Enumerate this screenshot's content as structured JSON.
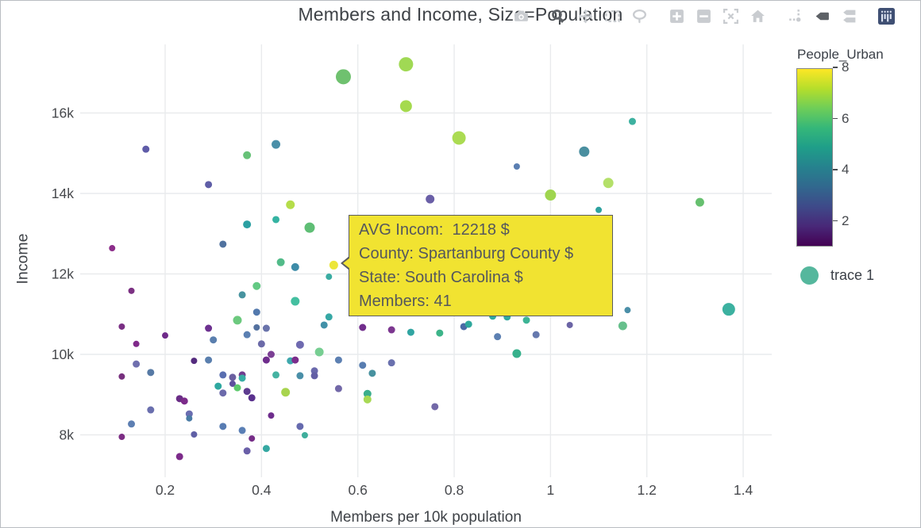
{
  "title": "Members and Income, Size=Population",
  "modebar": {
    "groups": [
      [
        "camera"
      ],
      [
        "zoom",
        "pan",
        "box-select",
        "lasso"
      ],
      [
        "zoom-in",
        "zoom-out",
        "autoscale",
        "reset-home"
      ],
      [
        "spike-lines",
        "hover-closest",
        "hover-compare"
      ],
      [
        "plotly-logo"
      ]
    ],
    "active": [
      "zoom",
      "hover-closest"
    ],
    "color_idle": "#c9ccd0",
    "color_active": "#5d6166",
    "logo_bg": "#3f4f73"
  },
  "tooltip": {
    "lines": [
      "AVG Incom:  12218 $",
      "County: Spartanburg County $",
      "State: South Carolina $",
      "Members: 41"
    ],
    "bg": "#f1e331",
    "border": "#5b5c5e",
    "text_color": "#54575d"
  },
  "chart_data": {
    "type": "scatter",
    "title": "Members and Income, Size=Population",
    "xlabel": "Members per 10k population",
    "ylabel": "Income",
    "xlim": [
      0.03,
      1.46
    ],
    "ylim": [
      7050,
      17700
    ],
    "grid": true,
    "x_ticks": {
      "values": [
        0.2,
        0.4,
        0.6,
        0.8,
        1,
        1.2,
        1.4
      ],
      "labels": [
        "0.2",
        "0.4",
        "0.6",
        "0.8",
        "1",
        "1.2",
        "1.4"
      ]
    },
    "y_ticks": {
      "values": [
        8000,
        10000,
        12000,
        14000,
        16000
      ],
      "labels": [
        "8k",
        "10k",
        "12k",
        "14k",
        "16k"
      ]
    },
    "size_encodes": "Population",
    "legend": [
      {
        "name": "trace 1",
        "color": "#55b79d"
      }
    ],
    "colorbar": {
      "title": "People_Urban",
      "tick_values": [
        8,
        6,
        4,
        2
      ],
      "tick_labels": [
        "8",
        "6",
        "4",
        "2"
      ],
      "vmin": 1,
      "vmax": 8,
      "colorscale": "viridis",
      "gradient_top_to_bottom": [
        "#fde725",
        "#b5de2b",
        "#6ece58",
        "#35b779",
        "#1f9e89",
        "#26828e",
        "#31688e",
        "#3e4a89",
        "#482878",
        "#440154"
      ]
    },
    "hovered": {
      "x": 0.55,
      "income": 12218,
      "county": "Spartanburg County",
      "state": "South Carolina",
      "members": 41,
      "color": "#ece63a"
    },
    "hovered_index": 19,
    "points_format": [
      "members_per_10k",
      "income",
      "radius_px",
      "color"
    ],
    "points": [
      [
        0.16,
        15100,
        4.5,
        "#5f5ca8"
      ],
      [
        0.37,
        14950,
        5,
        "#67c278"
      ],
      [
        0.29,
        14220,
        4.5,
        "#5f5ea7"
      ],
      [
        0.43,
        15220,
        5.5,
        "#4a8fa8"
      ],
      [
        0.46,
        13720,
        5.5,
        "#b5dd4a"
      ],
      [
        0.43,
        13350,
        4.5,
        "#35b3a2"
      ],
      [
        0.5,
        13150,
        6.5,
        "#5fbe75"
      ],
      [
        0.37,
        13230,
        5,
        "#2ba0a2"
      ],
      [
        0.32,
        12740,
        4.5,
        "#50729f"
      ],
      [
        0.09,
        12640,
        4,
        "#8c2d8a"
      ],
      [
        0.44,
        12290,
        5,
        "#52bb89"
      ],
      [
        0.47,
        12170,
        5,
        "#3e8ca8"
      ],
      [
        0.57,
        16900,
        9.5,
        "#6fc16f"
      ],
      [
        0.7,
        17210,
        9,
        "#a0d954"
      ],
      [
        0.7,
        16170,
        7.5,
        "#a5da4e"
      ],
      [
        0.81,
        15380,
        8.5,
        "#abdb52"
      ],
      [
        0.93,
        14670,
        4,
        "#5b7fb2"
      ],
      [
        0.75,
        13860,
        5.5,
        "#6a5fa7"
      ],
      [
        1.0,
        13960,
        7,
        "#9fd54f"
      ],
      [
        0.55,
        12218,
        5.5,
        "#ece63a"
      ],
      [
        1.17,
        15790,
        4.5,
        "#3db1a0"
      ],
      [
        1.07,
        15040,
        6.5,
        "#4a8fa0"
      ],
      [
        1.12,
        14260,
        6.5,
        "#b4e069"
      ],
      [
        1.31,
        13780,
        5.5,
        "#66c06f"
      ],
      [
        1.1,
        13590,
        4,
        "#2ea2a0"
      ],
      [
        0.13,
        11580,
        4,
        "#7c3183"
      ],
      [
        0.11,
        10690,
        4,
        "#7a2f84"
      ],
      [
        0.2,
        10470,
        4,
        "#6f2b8a"
      ],
      [
        0.14,
        10260,
        4,
        "#802a8a"
      ],
      [
        0.29,
        10650,
        4.5,
        "#6d3190"
      ],
      [
        0.3,
        10360,
        4.5,
        "#5a7fae"
      ],
      [
        0.36,
        11480,
        4.5,
        "#47939f"
      ],
      [
        0.39,
        11700,
        5,
        "#63c983"
      ],
      [
        0.39,
        11050,
        4.5,
        "#5379ad"
      ],
      [
        0.35,
        10850,
        5.5,
        "#6cc97e"
      ],
      [
        0.37,
        10490,
        4.5,
        "#5b80b2"
      ],
      [
        0.39,
        10670,
        4,
        "#54719f"
      ],
      [
        0.41,
        10650,
        4.5,
        "#6a74ab"
      ],
      [
        0.47,
        11320,
        5.5,
        "#44bfa0"
      ],
      [
        0.4,
        10260,
        4.5,
        "#6b6aa8"
      ],
      [
        0.48,
        10240,
        5,
        "#6f6ab0"
      ],
      [
        0.42,
        10000,
        4.5,
        "#7b3f94"
      ],
      [
        0.41,
        9860,
        4.5,
        "#6e2d8c"
      ],
      [
        0.46,
        9840,
        4.5,
        "#3fa8ad"
      ],
      [
        0.47,
        9860,
        4.5,
        "#7b2d8c"
      ],
      [
        0.26,
        9840,
        4,
        "#542b7e"
      ],
      [
        0.29,
        9860,
        4.5,
        "#5a7fae"
      ],
      [
        0.14,
        9760,
        4.5,
        "#6f6fae"
      ],
      [
        0.17,
        9550,
        4.5,
        "#577aa5"
      ],
      [
        0.11,
        9450,
        4,
        "#77307e"
      ],
      [
        0.32,
        9490,
        4.5,
        "#5a6fb0"
      ],
      [
        0.34,
        9430,
        4.5,
        "#6b5fa0"
      ],
      [
        0.36,
        9490,
        4.5,
        "#713d8f"
      ],
      [
        0.36,
        9410,
        4.5,
        "#38ada4"
      ],
      [
        0.31,
        9210,
        4.5,
        "#2fa8a0"
      ],
      [
        0.34,
        9270,
        4,
        "#5e4f9e"
      ],
      [
        0.35,
        9170,
        4.5,
        "#5cc96c"
      ],
      [
        0.32,
        9040,
        4.5,
        "#6c6aab"
      ],
      [
        0.37,
        9080,
        4.5,
        "#5e3c90"
      ],
      [
        0.38,
        8920,
        4.5,
        "#59308d"
      ],
      [
        0.23,
        8900,
        4.5,
        "#6a2d86"
      ],
      [
        0.24,
        8840,
        4.5,
        "#7c2b8a"
      ],
      [
        0.17,
        8620,
        4.5,
        "#6a6fae"
      ],
      [
        0.25,
        8520,
        4.5,
        "#6a6db0"
      ],
      [
        0.25,
        8410,
        4,
        "#4a7ba5"
      ],
      [
        0.13,
        8270,
        4.5,
        "#5d7fb2"
      ],
      [
        0.32,
        8210,
        4.5,
        "#587cb2"
      ],
      [
        0.36,
        8110,
        4.5,
        "#5a7fb5"
      ],
      [
        0.11,
        7950,
        4,
        "#7c2d84"
      ],
      [
        0.38,
        7910,
        4,
        "#762d87"
      ],
      [
        0.26,
        8010,
        4,
        "#5f5fa5"
      ],
      [
        0.37,
        7600,
        4.5,
        "#6a5fa8"
      ],
      [
        0.41,
        7660,
        4.5,
        "#35a8a2"
      ],
      [
        0.23,
        7460,
        4.5,
        "#7c2b8a"
      ],
      [
        0.42,
        8480,
        4,
        "#6e2d8c"
      ],
      [
        0.48,
        8210,
        4.5,
        "#666aae"
      ],
      [
        0.49,
        7990,
        4,
        "#3fae9c"
      ],
      [
        0.45,
        9060,
        5.5,
        "#a8d44e"
      ],
      [
        0.52,
        10060,
        5.5,
        "#77ce92"
      ],
      [
        0.51,
        9590,
        4.5,
        "#6a69ac"
      ],
      [
        0.51,
        9470,
        4.5,
        "#635fa5"
      ],
      [
        0.48,
        9470,
        4.5,
        "#4a8fa8"
      ],
      [
        0.43,
        9490,
        4.5,
        "#45b3a2"
      ],
      [
        0.54,
        11930,
        4,
        "#3aaca2"
      ],
      [
        0.54,
        10930,
        4.5,
        "#36a8a5"
      ],
      [
        0.53,
        10730,
        4.5,
        "#4191a8"
      ],
      [
        0.61,
        10670,
        4.5,
        "#712d8c"
      ],
      [
        0.67,
        10610,
        4.5,
        "#7c3790"
      ],
      [
        0.71,
        10550,
        4.5,
        "#31a5a2"
      ],
      [
        0.77,
        10530,
        4.5,
        "#3db489"
      ],
      [
        0.82,
        10690,
        4.5,
        "#4b6aa5"
      ],
      [
        0.83,
        10750,
        4.5,
        "#2fa89c"
      ],
      [
        0.88,
        10950,
        4.5,
        "#2fa89f"
      ],
      [
        0.89,
        10440,
        4.5,
        "#5c80b2"
      ],
      [
        0.91,
        10930,
        4.5,
        "#31a89f"
      ],
      [
        0.95,
        10850,
        4.5,
        "#3db495"
      ],
      [
        0.97,
        10490,
        4.5,
        "#6679ae"
      ],
      [
        0.93,
        10020,
        5.5,
        "#37b18c"
      ],
      [
        0.56,
        9860,
        4.5,
        "#5d80b2"
      ],
      [
        0.61,
        9730,
        4.5,
        "#587db0"
      ],
      [
        0.63,
        9530,
        4.5,
        "#47919f"
      ],
      [
        0.67,
        9790,
        4.5,
        "#6a71ae"
      ],
      [
        0.56,
        9150,
        4.5,
        "#7268a8"
      ],
      [
        0.62,
        9020,
        5,
        "#3bae8c"
      ],
      [
        0.62,
        8880,
        5,
        "#a8d954"
      ],
      [
        0.76,
        8700,
        4.5,
        "#7369a8"
      ],
      [
        1.16,
        11100,
        4,
        "#4b8fa8"
      ],
      [
        1.15,
        10710,
        5.5,
        "#66c08c"
      ],
      [
        1.04,
        10730,
        4,
        "#6b64a5"
      ],
      [
        1.37,
        11120,
        8,
        "#3cb1a0"
      ]
    ]
  }
}
